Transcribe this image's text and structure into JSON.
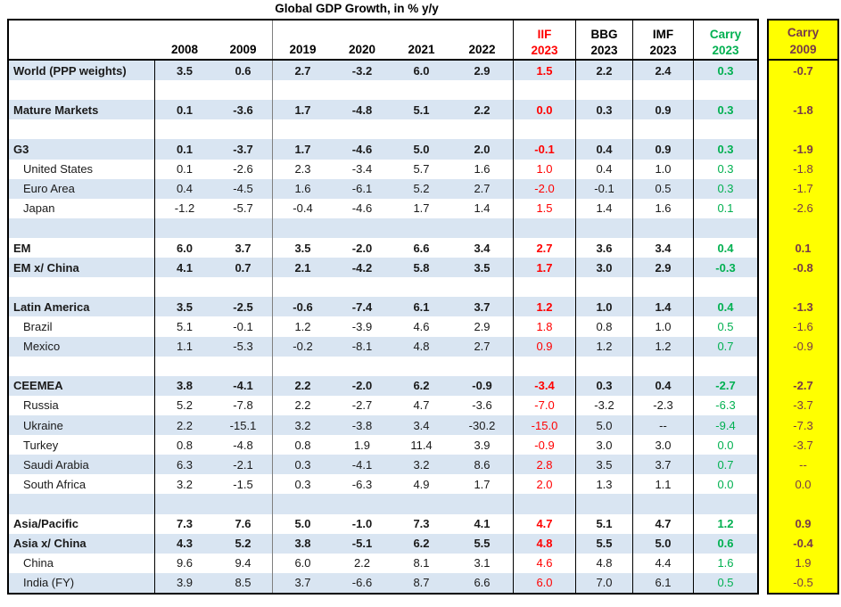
{
  "colors": {
    "row_stripe": "#D9E5F2",
    "iif_red": "#FF0000",
    "carry_green": "#00B050",
    "carry_maroon": "#76394A",
    "carry_yellow": "#FFFF00",
    "divider_gray": "#7F7F7F",
    "header_black": "#000000"
  },
  "chart_data": {
    "type": "table",
    "title": "Global GDP Growth, in % y/y",
    "columns": {
      "years": [
        "2008",
        "2009",
        "2019",
        "2020",
        "2021",
        "2022"
      ],
      "forecasts": [
        {
          "line1": "IIF",
          "line2": "2023",
          "color": "#FF0000"
        },
        {
          "line1": "BBG",
          "line2": "2023",
          "color": "#000000"
        },
        {
          "line1": "IMF",
          "line2": "2023",
          "color": "#000000"
        },
        {
          "line1": "Carry",
          "line2": "2023",
          "color": "#00B050"
        }
      ],
      "carry_2009": {
        "line1": "Carry",
        "line2": "2009"
      }
    },
    "value_order": [
      "2008",
      "2009",
      "2019",
      "2020",
      "2021",
      "2022",
      "IIF 2023",
      "BBG 2023",
      "IMF 2023",
      "Carry 2023",
      "Carry 2009"
    ],
    "rows": [
      {
        "label": "World (PPP weights)",
        "bold": true,
        "indent": false,
        "values": [
          "3.5",
          "0.6",
          "2.7",
          "-3.2",
          "6.0",
          "2.9",
          "1.5",
          "2.2",
          "2.4",
          "0.3",
          "-0.7"
        ]
      },
      {
        "spacer": true
      },
      {
        "label": "Mature Markets",
        "bold": true,
        "indent": false,
        "values": [
          "0.1",
          "-3.6",
          "1.7",
          "-4.8",
          "5.1",
          "2.2",
          "0.0",
          "0.3",
          "0.9",
          "0.3",
          "-1.8"
        ]
      },
      {
        "spacer": true
      },
      {
        "label": "G3",
        "bold": true,
        "indent": false,
        "values": [
          "0.1",
          "-3.7",
          "1.7",
          "-4.6",
          "5.0",
          "2.0",
          "-0.1",
          "0.4",
          "0.9",
          "0.3",
          "-1.9"
        ]
      },
      {
        "label": "United States",
        "bold": false,
        "indent": true,
        "values": [
          "0.1",
          "-2.6",
          "2.3",
          "-3.4",
          "5.7",
          "1.6",
          "1.0",
          "0.4",
          "1.0",
          "0.3",
          "-1.8"
        ]
      },
      {
        "label": "Euro Area",
        "bold": false,
        "indent": true,
        "values": [
          "0.4",
          "-4.5",
          "1.6",
          "-6.1",
          "5.2",
          "2.7",
          "-2.0",
          "-0.1",
          "0.5",
          "0.3",
          "-1.7"
        ]
      },
      {
        "label": "Japan",
        "bold": false,
        "indent": true,
        "values": [
          "-1.2",
          "-5.7",
          "-0.4",
          "-4.6",
          "1.7",
          "1.4",
          "1.5",
          "1.4",
          "1.6",
          "0.1",
          "-2.6"
        ]
      },
      {
        "spacer": true
      },
      {
        "label": "EM",
        "bold": true,
        "indent": false,
        "values": [
          "6.0",
          "3.7",
          "3.5",
          "-2.0",
          "6.6",
          "3.4",
          "2.7",
          "3.6",
          "3.4",
          "0.4",
          "0.1"
        ]
      },
      {
        "label": "EM x/ China",
        "bold": true,
        "indent": false,
        "values": [
          "4.1",
          "0.7",
          "2.1",
          "-4.2",
          "5.8",
          "3.5",
          "1.7",
          "3.0",
          "2.9",
          "-0.3",
          "-0.8"
        ]
      },
      {
        "spacer": true
      },
      {
        "label": "Latin America",
        "bold": true,
        "indent": false,
        "values": [
          "3.5",
          "-2.5",
          "-0.6",
          "-7.4",
          "6.1",
          "3.7",
          "1.2",
          "1.0",
          "1.4",
          "0.4",
          "-1.3"
        ]
      },
      {
        "label": "Brazil",
        "bold": false,
        "indent": true,
        "values": [
          "5.1",
          "-0.1",
          "1.2",
          "-3.9",
          "4.6",
          "2.9",
          "1.8",
          "0.8",
          "1.0",
          "0.5",
          "-1.6"
        ]
      },
      {
        "label": "Mexico",
        "bold": false,
        "indent": true,
        "values": [
          "1.1",
          "-5.3",
          "-0.2",
          "-8.1",
          "4.8",
          "2.7",
          "0.9",
          "1.2",
          "1.2",
          "0.7",
          "-0.9"
        ]
      },
      {
        "spacer": true
      },
      {
        "label": "CEEMEA",
        "bold": true,
        "indent": false,
        "values": [
          "3.8",
          "-4.1",
          "2.2",
          "-2.0",
          "6.2",
          "-0.9",
          "-3.4",
          "0.3",
          "0.4",
          "-2.7",
          "-2.7"
        ]
      },
      {
        "label": "Russia",
        "bold": false,
        "indent": true,
        "values": [
          "5.2",
          "-7.8",
          "2.2",
          "-2.7",
          "4.7",
          "-3.6",
          "-7.0",
          "-3.2",
          "-2.3",
          "-6.3",
          "-3.7"
        ]
      },
      {
        "label": "Ukraine",
        "bold": false,
        "indent": true,
        "values": [
          "2.2",
          "-15.1",
          "3.2",
          "-3.8",
          "3.4",
          "-30.2",
          "-15.0",
          "5.0",
          "--",
          "-9.4",
          "-7.3"
        ]
      },
      {
        "label": "Turkey",
        "bold": false,
        "indent": true,
        "values": [
          "0.8",
          "-4.8",
          "0.8",
          "1.9",
          "11.4",
          "3.9",
          "-0.9",
          "3.0",
          "3.0",
          "0.0",
          "-3.7"
        ]
      },
      {
        "label": "Saudi Arabia",
        "bold": false,
        "indent": true,
        "values": [
          "6.3",
          "-2.1",
          "0.3",
          "-4.1",
          "3.2",
          "8.6",
          "2.8",
          "3.5",
          "3.7",
          "0.7",
          "--"
        ]
      },
      {
        "label": "South Africa",
        "bold": false,
        "indent": true,
        "values": [
          "3.2",
          "-1.5",
          "0.3",
          "-6.3",
          "4.9",
          "1.7",
          "2.0",
          "1.3",
          "1.1",
          "0.0",
          "0.0"
        ]
      },
      {
        "spacer": true
      },
      {
        "label": "Asia/Pacific",
        "bold": true,
        "indent": false,
        "values": [
          "7.3",
          "7.6",
          "5.0",
          "-1.0",
          "7.3",
          "4.1",
          "4.7",
          "5.1",
          "4.7",
          "1.2",
          "0.9"
        ]
      },
      {
        "label": "Asia x/ China",
        "bold": true,
        "indent": false,
        "values": [
          "4.3",
          "5.2",
          "3.8",
          "-5.1",
          "6.2",
          "5.5",
          "4.8",
          "5.5",
          "5.0",
          "0.6",
          "-0.4"
        ]
      },
      {
        "label": "China",
        "bold": false,
        "indent": true,
        "values": [
          "9.6",
          "9.4",
          "6.0",
          "2.2",
          "8.1",
          "3.1",
          "4.6",
          "4.8",
          "4.4",
          "1.6",
          "1.9"
        ]
      },
      {
        "label": "India (FY)",
        "bold": false,
        "indent": true,
        "values": [
          "3.9",
          "8.5",
          "3.7",
          "-6.6",
          "8.7",
          "6.6",
          "6.0",
          "7.0",
          "6.1",
          "0.5",
          "-0.5"
        ]
      }
    ]
  }
}
